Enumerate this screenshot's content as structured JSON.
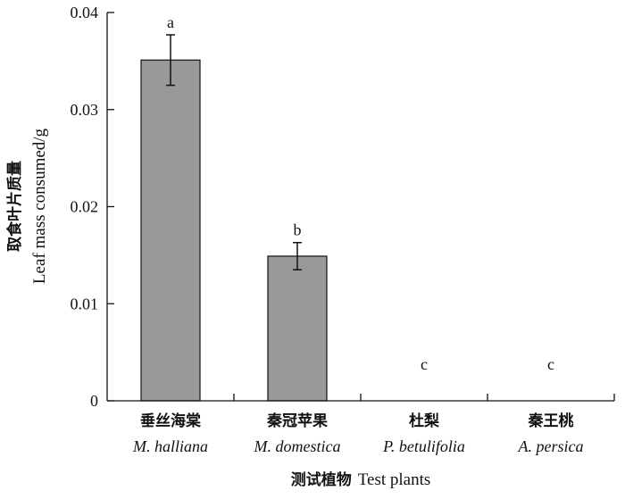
{
  "chart_data": {
    "type": "bar",
    "categories": [
      {
        "cn": "垂丝海棠",
        "latin": "M. halliana"
      },
      {
        "cn": "秦冠苹果",
        "latin": "M. domestica"
      },
      {
        "cn": "杜梨",
        "latin": "P. betulifolia"
      },
      {
        "cn": "秦王桃",
        "latin": "A. persica"
      }
    ],
    "values": [
      0.0351,
      0.0149,
      0,
      0
    ],
    "errors": [
      0.0026,
      0.0014,
      0,
      0
    ],
    "significance": [
      "a",
      "b",
      "c",
      "c"
    ],
    "ylim": [
      0,
      0.04
    ],
    "yticks": [
      "0",
      "0.01",
      "0.02",
      "0.03",
      "0.04"
    ],
    "ytick_values": [
      0,
      0.01,
      0.02,
      0.03,
      0.04
    ],
    "ylabel_cn": "取食叶片质量",
    "ylabel_en": "Leaf mass consumed/g",
    "xlabel_cn": "测试植物",
    "xlabel_en": "Test plants",
    "bar_color": "#999999",
    "grid": false
  }
}
